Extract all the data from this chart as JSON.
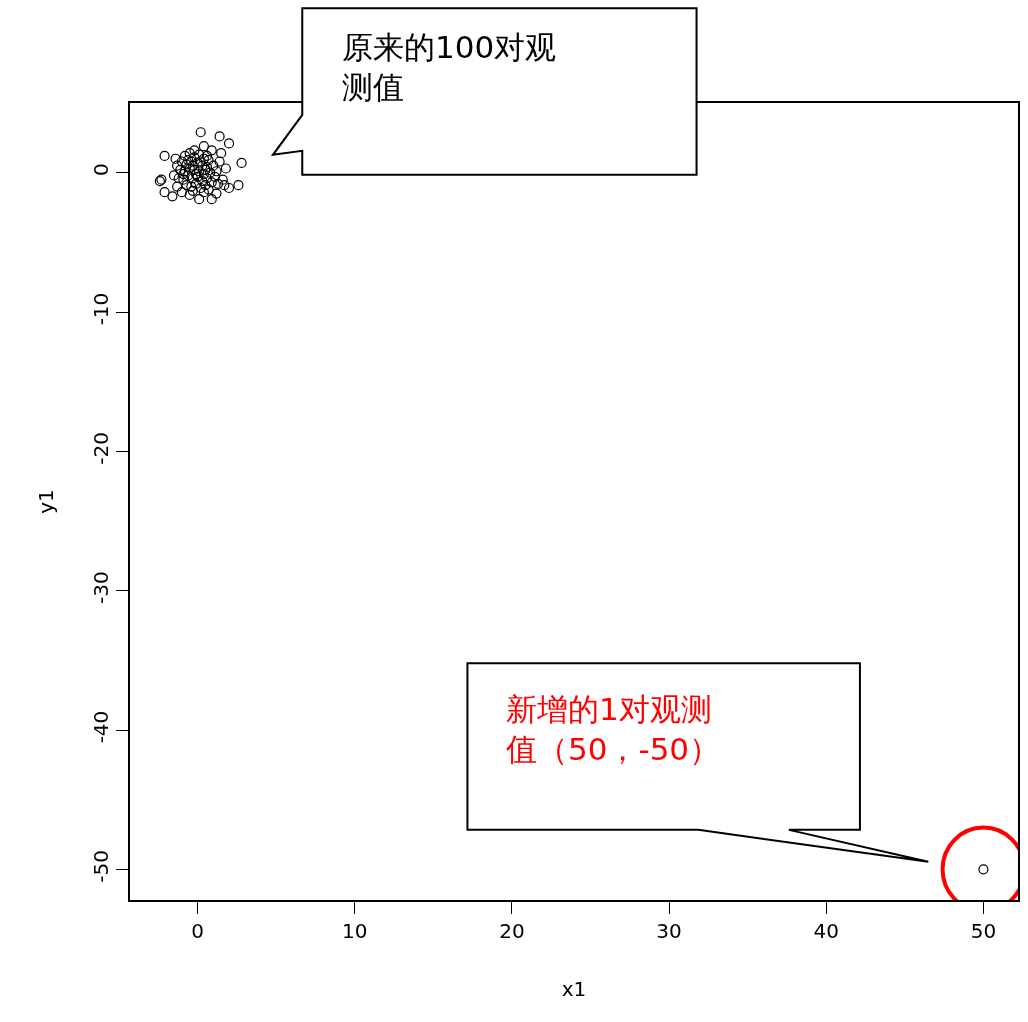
{
  "chart_data": {
    "type": "scatter",
    "xlabel": "x1",
    "ylabel": "y1",
    "x": [
      0.2,
      1.4,
      2.0,
      -2.1,
      2.8,
      -2.3,
      -2.1,
      -1.6,
      0.1,
      0.9,
      2.6,
      2.0,
      1.5,
      -2.4,
      1.7,
      1.2,
      -0.5,
      -1.0,
      0.9,
      0.4,
      1.8,
      1.6,
      -1.3,
      -1.5,
      -0.8,
      -0.5,
      -0.2,
      0.1,
      0.4,
      0.7,
      -1.0,
      -0.7,
      -0.4,
      0.0,
      0.3,
      0.6,
      1.0,
      1.2,
      -1.1,
      -0.8,
      -0.5,
      -0.2,
      0.1,
      0.4,
      0.8,
      1.1,
      -1.2,
      -0.9,
      -0.6,
      -0.3,
      0.0,
      0.3,
      0.6,
      0.9,
      -0.7,
      -0.4,
      -0.1,
      0.2,
      0.5,
      -0.3,
      0.4,
      -0.6,
      -0.3,
      0.2,
      -0.9,
      0.5,
      -0.1,
      0.7,
      1.3,
      1.4,
      -1.4,
      -0.2,
      0.6,
      -1.3,
      50
    ],
    "values": [
      2.9,
      2.6,
      2.1,
      1.2,
      0.7,
      -0.5,
      -1.4,
      -1.7,
      -1.9,
      -1.9,
      -0.9,
      -1.1,
      1.4,
      -0.6,
      -0.9,
      -1.5,
      -1.6,
      -1.4,
      1.6,
      1.9,
      0.3,
      -0.5,
      0.5,
      -0.2,
      1.2,
      1.4,
      1.1,
      1.3,
      1.0,
      0.9,
      0.8,
      0.6,
      0.8,
      0.7,
      0.5,
      0.4,
      0.5,
      0.1,
      0.2,
      0.1,
      0.3,
      0.2,
      0.1,
      -0.1,
      0.0,
      -0.3,
      -0.4,
      -0.5,
      -0.2,
      -0.4,
      -0.3,
      -0.6,
      -0.4,
      -0.7,
      -0.9,
      -1.0,
      -0.8,
      -1.1,
      -0.9,
      -1.3,
      -1.4,
      0.9,
      0.5,
      0.8,
      -0.1,
      0.2,
      -0.1,
      -1.2,
      -0.8,
      0.8,
      1.0,
      1.6,
      1.2,
      -1.0,
      -50
    ],
    "color": "#000000",
    "marker": "circle",
    "xlim": [
      -4.3,
      52.2
    ],
    "ylim": [
      -52.2,
      5.0
    ],
    "xticks": [
      0,
      10,
      20,
      30,
      40,
      50
    ],
    "yticks": [
      -50,
      -40,
      -30,
      -20,
      -10,
      0
    ],
    "grid": false,
    "legend": false,
    "annotations": [
      "原来的100对观测值",
      "新增的1对观测值（50，-50）"
    ]
  }
}
